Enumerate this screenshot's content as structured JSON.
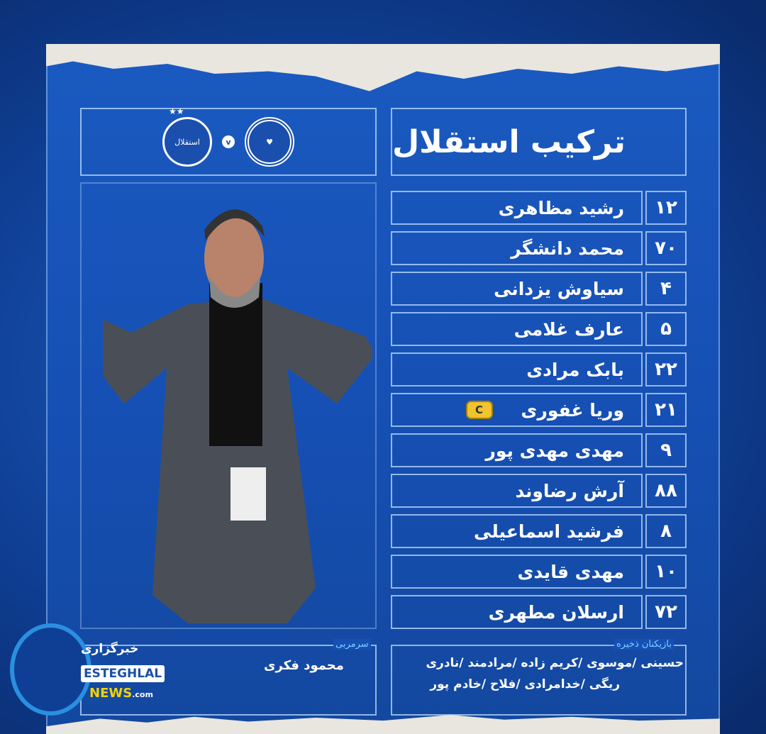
{
  "title": "ترکیب استقلال",
  "match": {
    "home_crest": "esteghlal-crest",
    "vs": "v",
    "away_crest": "sepahan-crest",
    "home_crest_text": "استقلال",
    "home_stars": "★★"
  },
  "lineup": [
    {
      "number": "۱۲",
      "name": "رشید مظاهری"
    },
    {
      "number": "۷۰",
      "name": "محمد دانشگر"
    },
    {
      "number": "۴",
      "name": "سیاوش یزدانی"
    },
    {
      "number": "۵",
      "name": "عارف غلامی"
    },
    {
      "number": "۲۲",
      "name": "بابک مرادی"
    },
    {
      "number": "۲۱",
      "name": "وریا غفوری",
      "captain": "C"
    },
    {
      "number": "۹",
      "name": "مهدی مهدی پور"
    },
    {
      "number": "۸۸",
      "name": "آرش رضاوند"
    },
    {
      "number": "۸",
      "name": "فرشید اسماعیلی"
    },
    {
      "number": "۱۰",
      "name": "مهدی قایدی"
    },
    {
      "number": "۷۲",
      "name": "ارسلان مطهری"
    }
  ],
  "coach": {
    "label": "سرمربی",
    "name": "محمود فکری"
  },
  "subs": {
    "label": "بازیکنان ذخیره",
    "line1": "حسینی /موسوی /کریم زاده /مرادمند /نادری",
    "line2": "ریگی /خدامرادی /فلاح /خادم پور"
  },
  "brand": {
    "fa": "خبرگزاری",
    "name": "ESTEGHLAL",
    "news": "NEWS",
    ".com": ".com"
  },
  "colors": {
    "background": "#1650b5",
    "captain_badge": "#f0c330",
    "label": "#7fd0ff"
  }
}
